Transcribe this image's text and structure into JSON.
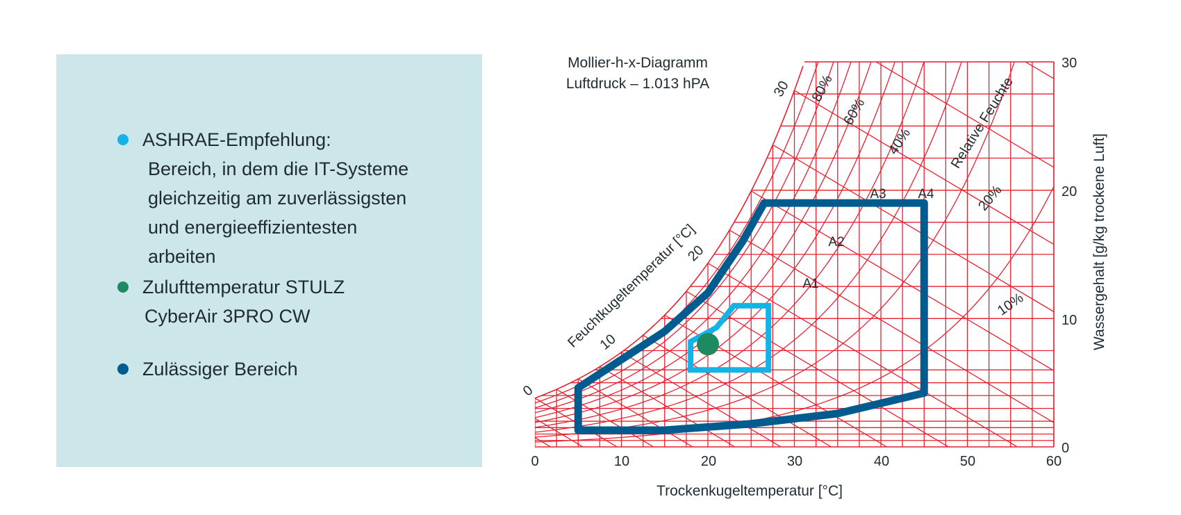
{
  "legend": {
    "items": [
      {
        "color": "#12b4e8",
        "title": "ASHRAE-Empfehlung:",
        "description": [
          "Bereich, in dem die IT-Systeme",
          "gleichzeitig am zuverlässigsten",
          "und energieeffizientesten",
          "arbeiten"
        ]
      },
      {
        "color": "#1e8a60",
        "title": "Zulufttemperatur STULZ",
        "description": [
          "CyberAir 3PRO CW"
        ]
      },
      {
        "color": "#005b8f",
        "title": "Zulässiger Bereich",
        "description": []
      }
    ]
  },
  "chart_data": {
    "type": "psychrometric",
    "title": [
      "Mollier-h-x-Diagramm",
      "Luftdruck – 1.013 hPA"
    ],
    "xlabel": "Trockenkugeltemperatur [°C]",
    "ylabel": "Wassergehalt [g/kg trockene Luft]",
    "xlim": [
      0,
      60
    ],
    "ylim": [
      0,
      30
    ],
    "xticks": [
      0,
      10,
      20,
      30,
      40,
      50,
      60
    ],
    "yticks": [
      0,
      10,
      20,
      30
    ],
    "wetbulb_label": "Feuchtkugeltemperatur [°C]",
    "wetbulb_ticks": [
      "0",
      "10",
      "20",
      "30"
    ],
    "rh_label": "Relative Feuchte",
    "rh_ticks": [
      "80%",
      "60%",
      "40%",
      "20%",
      "10%"
    ],
    "grid_color": "#e8202e",
    "class_labels": [
      "A1",
      "A2",
      "A3",
      "A4"
    ],
    "permitted_region": {
      "name": "Zulässiger Bereich",
      "color": "#005b8f",
      "points": [
        [
          5,
          1.3
        ],
        [
          15,
          1.3
        ],
        [
          25,
          1.8
        ],
        [
          35,
          2.6
        ],
        [
          45,
          4.2
        ],
        [
          45,
          19
        ],
        [
          26.5,
          19
        ],
        [
          24,
          16
        ],
        [
          20,
          12
        ],
        [
          15,
          9
        ],
        [
          10,
          6.8
        ],
        [
          5,
          4.6
        ]
      ]
    },
    "ashrae_region": {
      "name": "ASHRAE-Empfehlung",
      "color": "#12b4e8",
      "points": [
        [
          18,
          6
        ],
        [
          27,
          6
        ],
        [
          27,
          11
        ],
        [
          23,
          11
        ],
        [
          21,
          9.3
        ],
        [
          18,
          8.2
        ]
      ]
    },
    "supply_point": {
      "name": "Zulufttemperatur STULZ CyberAir 3PRO CW",
      "color": "#1e8a60",
      "x": 20,
      "y": 8
    }
  }
}
